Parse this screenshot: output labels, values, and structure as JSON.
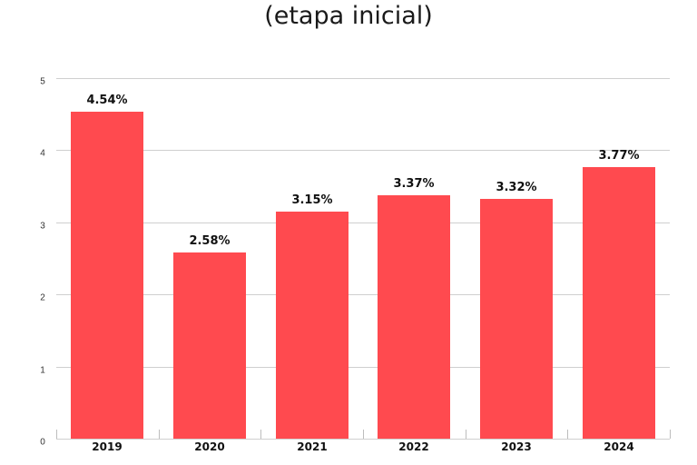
{
  "title": "(etapa inicial)",
  "colors": {
    "bar": "#FF4A4F",
    "grid": "#cfcfcf",
    "text": "#111111"
  },
  "chart_data": {
    "type": "bar",
    "title": "(etapa inicial)",
    "xlabel": "",
    "ylabel": "",
    "categories": [
      "2019",
      "2020",
      "2021",
      "2022",
      "2023",
      "2024"
    ],
    "values": [
      4.54,
      2.58,
      3.15,
      3.37,
      3.32,
      3.77
    ],
    "value_labels": [
      "4.54%",
      "2.58%",
      "3.15%",
      "3.37%",
      "3.32%",
      "3.77%"
    ],
    "ylim": [
      0,
      5
    ],
    "yticks": [
      "0",
      "1",
      "2",
      "3",
      "4",
      "5"
    ],
    "grid": true,
    "legend": null
  }
}
